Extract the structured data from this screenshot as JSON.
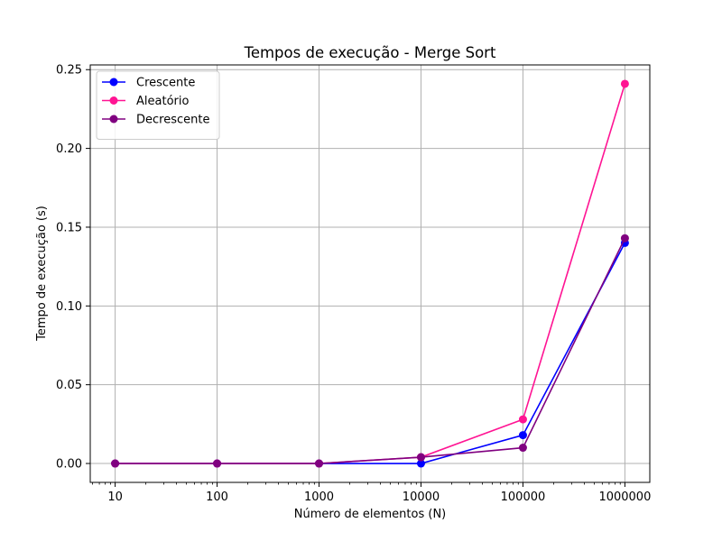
{
  "chart_data": {
    "type": "line",
    "title": "Tempos de execução - Merge Sort",
    "xlabel": "Número de elementos (N)",
    "ylabel": "Tempo de execução (s)",
    "x_scale": "log",
    "x": [
      10,
      100,
      1000,
      10000,
      100000,
      1000000
    ],
    "x_tick_labels": [
      "10",
      "100",
      "1000",
      "10000",
      "100000",
      "1000000"
    ],
    "y_ticks": [
      0.0,
      0.05,
      0.1,
      0.15,
      0.2,
      0.25
    ],
    "y_tick_labels": [
      "0.00",
      "0.05",
      "0.10",
      "0.15",
      "0.20",
      "0.25"
    ],
    "ylim": [
      -0.012,
      0.253
    ],
    "grid": true,
    "legend_position": "top-left",
    "series": [
      {
        "name": "Crescente",
        "color": "#0000ff",
        "marker": "circle",
        "values": [
          0.0,
          0.0,
          0.0,
          0.0,
          0.018,
          0.14
        ]
      },
      {
        "name": "Aleatório",
        "color": "#ff1493",
        "marker": "circle",
        "values": [
          0.0,
          0.0,
          0.0,
          0.004,
          0.028,
          0.241
        ]
      },
      {
        "name": "Decrescente",
        "color": "#800080",
        "marker": "circle",
        "values": [
          0.0,
          0.0,
          0.0,
          0.004,
          0.01,
          0.143
        ]
      }
    ]
  }
}
